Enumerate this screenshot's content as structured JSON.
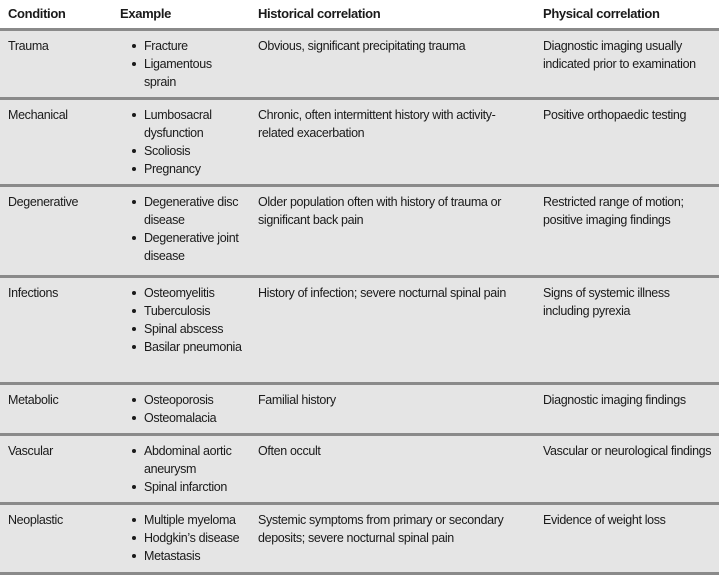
{
  "headers": [
    "Condition",
    "Example",
    "Historical correlation",
    "Physical correlation"
  ],
  "rows": [
    {
      "condition": "Trauma",
      "examples": [
        "Fracture",
        "Ligamentous sprain"
      ],
      "historical": "Obvious, significant precipitating trauma",
      "physical": "Diagnostic imaging usually indicated prior to examination"
    },
    {
      "condition": "Mechanical",
      "examples": [
        "Lumbosacral dysfunction",
        "Scoliosis",
        "Pregnancy"
      ],
      "historical": "Chronic, often intermittent history with activity-related exacerbation",
      "physical": "Positive orthopaedic testing"
    },
    {
      "condition": "Degenerative",
      "examples": [
        "Degenerative disc disease",
        "Degenerative joint disease"
      ],
      "historical": "Older population often with history of trauma or significant back pain",
      "physical": "Restricted range of motion; positive imaging findings"
    },
    {
      "condition": "Infections",
      "examples": [
        "Osteomyelitis",
        "Tuberculosis",
        "Spinal abscess",
        "Basilar pneumonia"
      ],
      "historical": "History of infection; severe nocturnal spinal pain",
      "physical": "Signs of systemic illness including pyrexia"
    },
    {
      "condition": "Metabolic",
      "examples": [
        "Osteoporosis",
        "Osteomalacia"
      ],
      "historical": "Familial history",
      "physical": "Diagnostic imaging findings"
    },
    {
      "condition": "Vascular",
      "examples": [
        "Abdominal aortic aneurysm",
        "Spinal infarction"
      ],
      "historical": "Often occult",
      "physical": "Vascular or neurological findings"
    },
    {
      "condition": "Neoplastic",
      "examples": [
        "Multiple myeloma",
        "Hodgkin’s disease",
        "Metastasis"
      ],
      "historical": "Systemic symptoms from primary or secondary deposits; severe nocturnal spinal pain",
      "physical": "Evidence of weight loss"
    }
  ]
}
